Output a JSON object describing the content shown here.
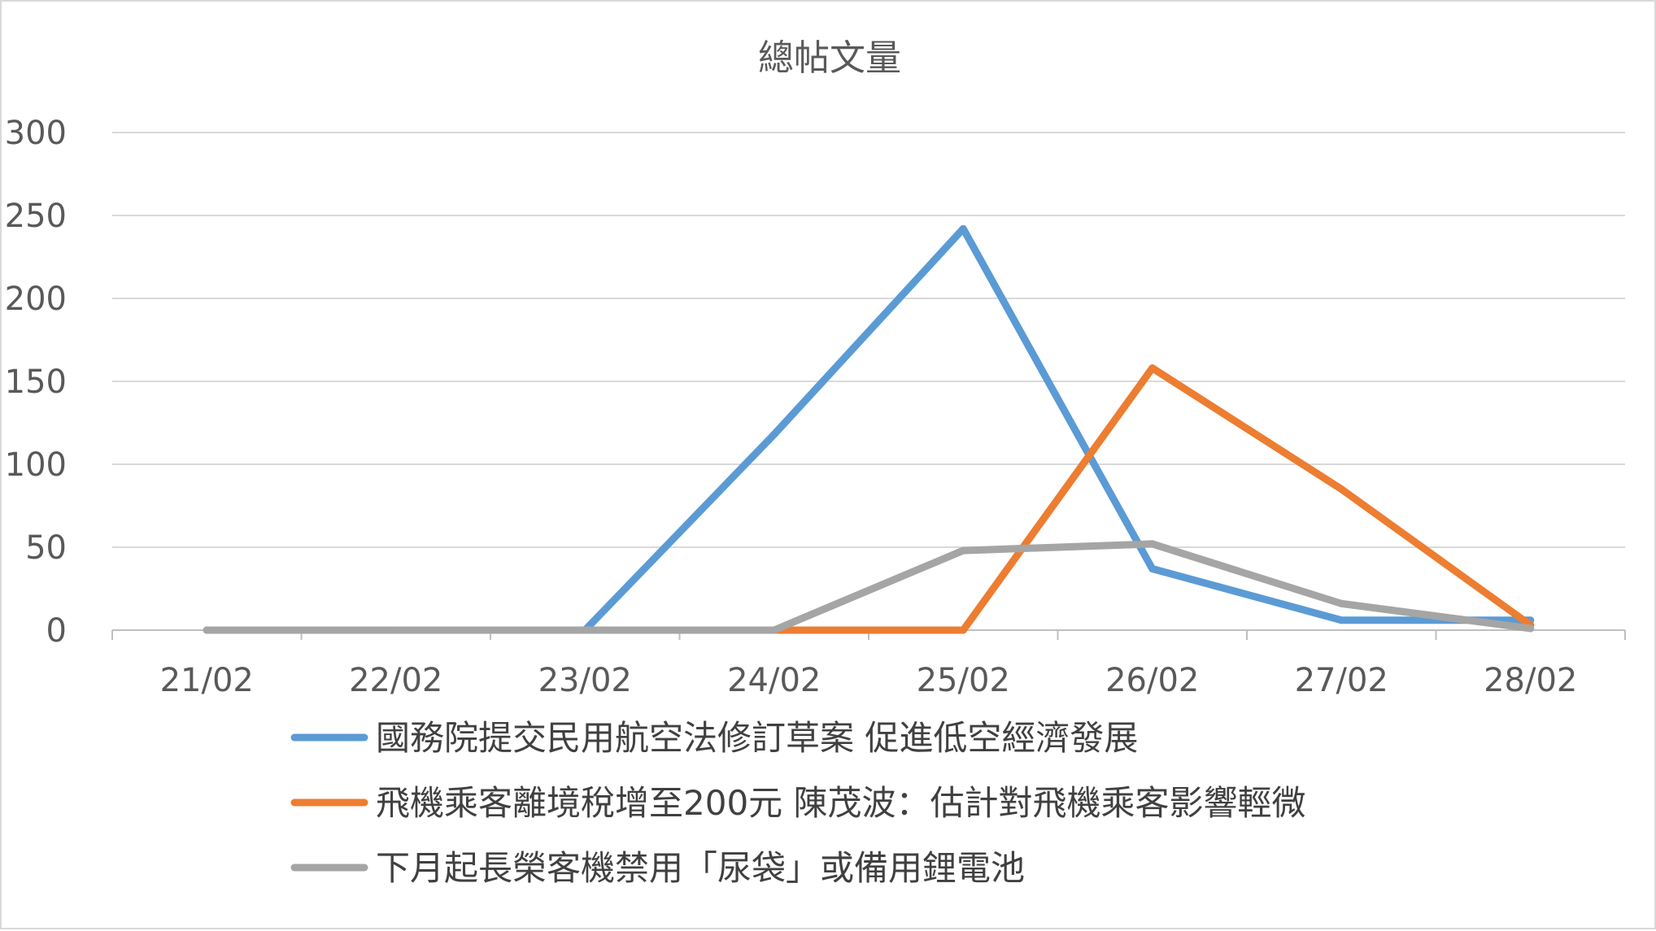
{
  "chart_data": {
    "type": "line",
    "title": "總帖文量",
    "categories": [
      "21/02",
      "22/02",
      "23/02",
      "24/02",
      "25/02",
      "26/02",
      "27/02",
      "28/02"
    ],
    "yticks": [
      "0",
      "50",
      "100",
      "150",
      "200",
      "250",
      "300"
    ],
    "ylim": [
      0,
      300
    ],
    "grid": true,
    "legend_position": "bottom",
    "series": [
      {
        "name": "國務院提交民用航空法修訂草案 促進低空經濟發展",
        "color": "#5b9bd5",
        "values": [
          0,
          0,
          0,
          118,
          242,
          37,
          6,
          6
        ]
      },
      {
        "name": "飛機乘客離境稅增至200元 陳茂波：估計對飛機乘客影響輕微",
        "color": "#ed7d31",
        "values": [
          0,
          0,
          0,
          0,
          0,
          158,
          85,
          3
        ]
      },
      {
        "name": "下月起長榮客機禁用「尿袋」或備用鋰電池",
        "color": "#a5a5a5",
        "values": [
          0,
          0,
          0,
          0,
          48,
          52,
          16,
          1
        ]
      }
    ]
  }
}
